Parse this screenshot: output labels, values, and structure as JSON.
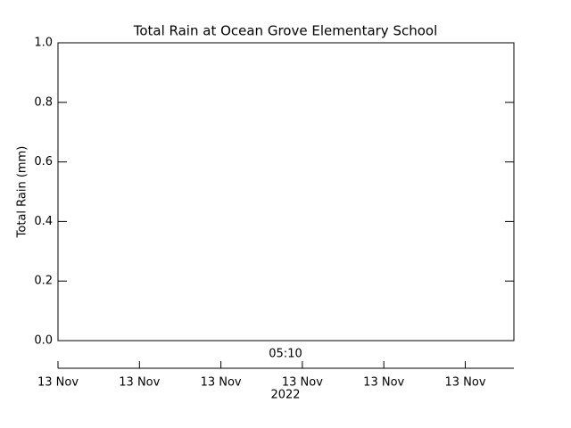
{
  "chart_data": {
    "type": "line",
    "title": "Total Rain at Ocean Grove Elementary School",
    "y_label": "Total Rain (mm)",
    "x_annotation": "05:10",
    "x_year": "2022",
    "categories": [
      "13 Nov",
      "13 Nov",
      "13 Nov",
      "13 Nov",
      "13 Nov",
      "13 Nov"
    ],
    "series": [],
    "ylim": [
      0,
      1
    ],
    "yticks": [
      {
        "value": 0,
        "label": "0.0"
      },
      {
        "value": 0.2,
        "label": "0.2"
      },
      {
        "value": 0.4,
        "label": "0.4"
      },
      {
        "value": 0.6,
        "label": "0.6"
      },
      {
        "value": 0.8,
        "label": "0.8"
      },
      {
        "value": 1,
        "label": "1.0"
      }
    ]
  }
}
